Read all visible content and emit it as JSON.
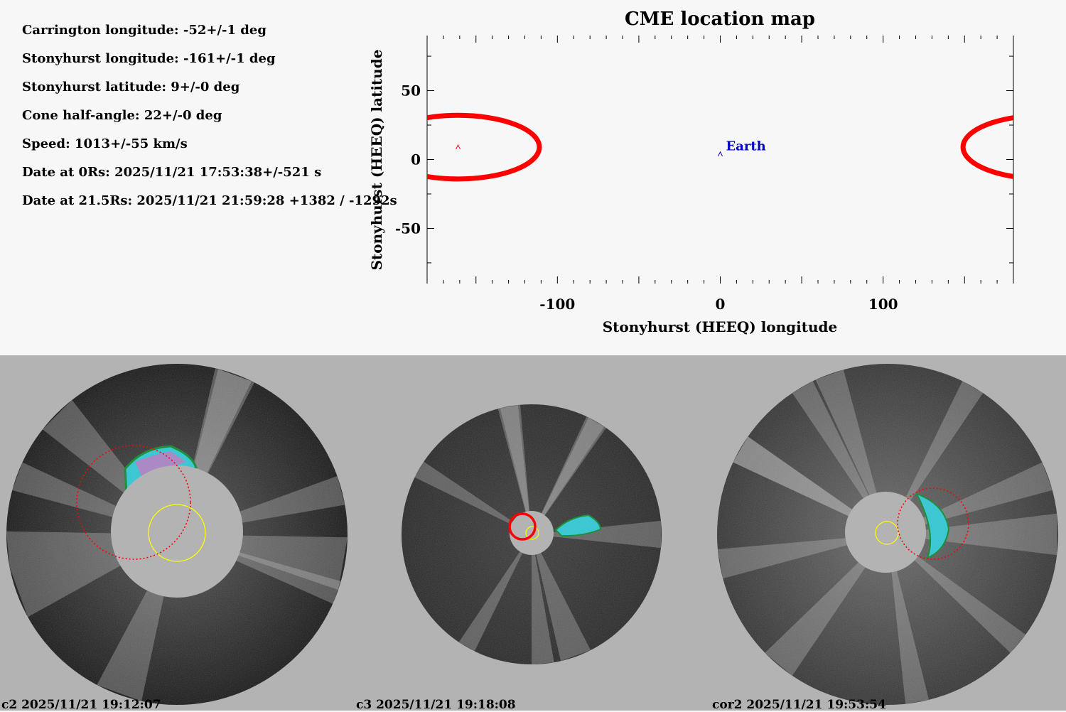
{
  "info": [
    "Carrington longitude: -52+/-1 deg",
    "Stonyhurst longitude: -161+/-1 deg",
    "Stonyhurst latitude: 9+/-0 deg",
    "Cone half-angle: 22+/-0 deg",
    "Speed: 1013+/-55 km/s",
    "Date at 0Rs: 2025/11/21 17:53:38+/-521 s",
    "Date at 21.5Rs: 2025/11/21 21:59:28 +1382 / -1292s"
  ],
  "chart_data": {
    "type": "scatter",
    "title": "CME location map",
    "xlabel": "Stonyhurst (HEEQ) longitude",
    "ylabel": "Stonyhurst (HEEQ) latitude",
    "xlim": [
      -180,
      180
    ],
    "ylim": [
      -90,
      90
    ],
    "xticks": [
      -100,
      0,
      100
    ],
    "yticks": [
      50,
      0,
      -50
    ],
    "grid": false,
    "points": [
      {
        "label": "",
        "x": -161,
        "y": 9,
        "color": "#ff0000",
        "marker": "caret"
      },
      {
        "label": "Earth",
        "x": 0,
        "y": 4,
        "color": "#0000cc",
        "marker": "caret"
      }
    ],
    "cone": {
      "center_lon": -161,
      "center_lat": 9,
      "half_angle": 22,
      "color": "#ff0000"
    }
  },
  "captions": {
    "c2": "c2 2025/11/21 19:12:07",
    "c3": "c3 2025/11/21 19:18:08",
    "cor2": "cor2 2025/11/21 19:53:54"
  },
  "colors": {
    "cone": "#ff0000",
    "earth": "#0000cc",
    "sun_marker": "#ffff00",
    "panel_bg": "#b3b3b3"
  }
}
